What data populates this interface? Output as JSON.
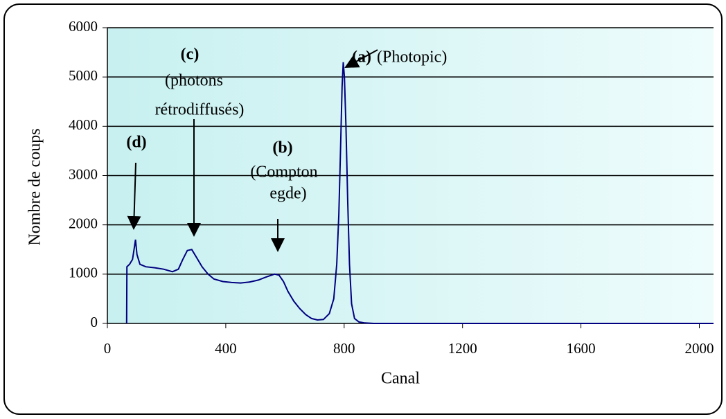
{
  "chart_data": {
    "type": "line",
    "x_label": "Canal",
    "y_label": "Nombre de coups",
    "xlim": [
      0,
      2048
    ],
    "ylim": [
      0,
      6000
    ],
    "xticks": [
      0,
      400,
      800,
      1200,
      1600,
      2000
    ],
    "yticks": [
      0,
      1000,
      2000,
      3000,
      4000,
      5000,
      6000
    ],
    "grid": true,
    "annotations": [
      "(a)",
      "(Photopic)",
      "(b)",
      "(Compton",
      "egde)",
      "(c)",
      "(photons",
      "rétrodiffusés)",
      "(d)"
    ],
    "series": [
      {
        "color": "#000080",
        "x": [
          65,
          66,
          75,
          85,
          90,
          95,
          100,
          110,
          130,
          160,
          190,
          220,
          240,
          255,
          270,
          285,
          300,
          320,
          340,
          360,
          390,
          420,
          450,
          480,
          510,
          540,
          565,
          580,
          595,
          610,
          630,
          650,
          670,
          690,
          710,
          730,
          750,
          765,
          775,
          782,
          788,
          793,
          797,
          801,
          806,
          812,
          818,
          825,
          835,
          850,
          870,
          900,
          2048
        ],
        "values": [
          0,
          1150,
          1200,
          1300,
          1500,
          1700,
          1400,
          1200,
          1150,
          1130,
          1100,
          1050,
          1100,
          1300,
          1480,
          1500,
          1350,
          1150,
          1000,
          900,
          850,
          830,
          820,
          840,
          880,
          950,
          1000,
          980,
          850,
          650,
          450,
          300,
          180,
          100,
          70,
          80,
          200,
          500,
          1200,
          2200,
          3600,
          4800,
          5300,
          5000,
          4000,
          2500,
          1200,
          400,
          100,
          30,
          10,
          0,
          0
        ]
      }
    ]
  }
}
